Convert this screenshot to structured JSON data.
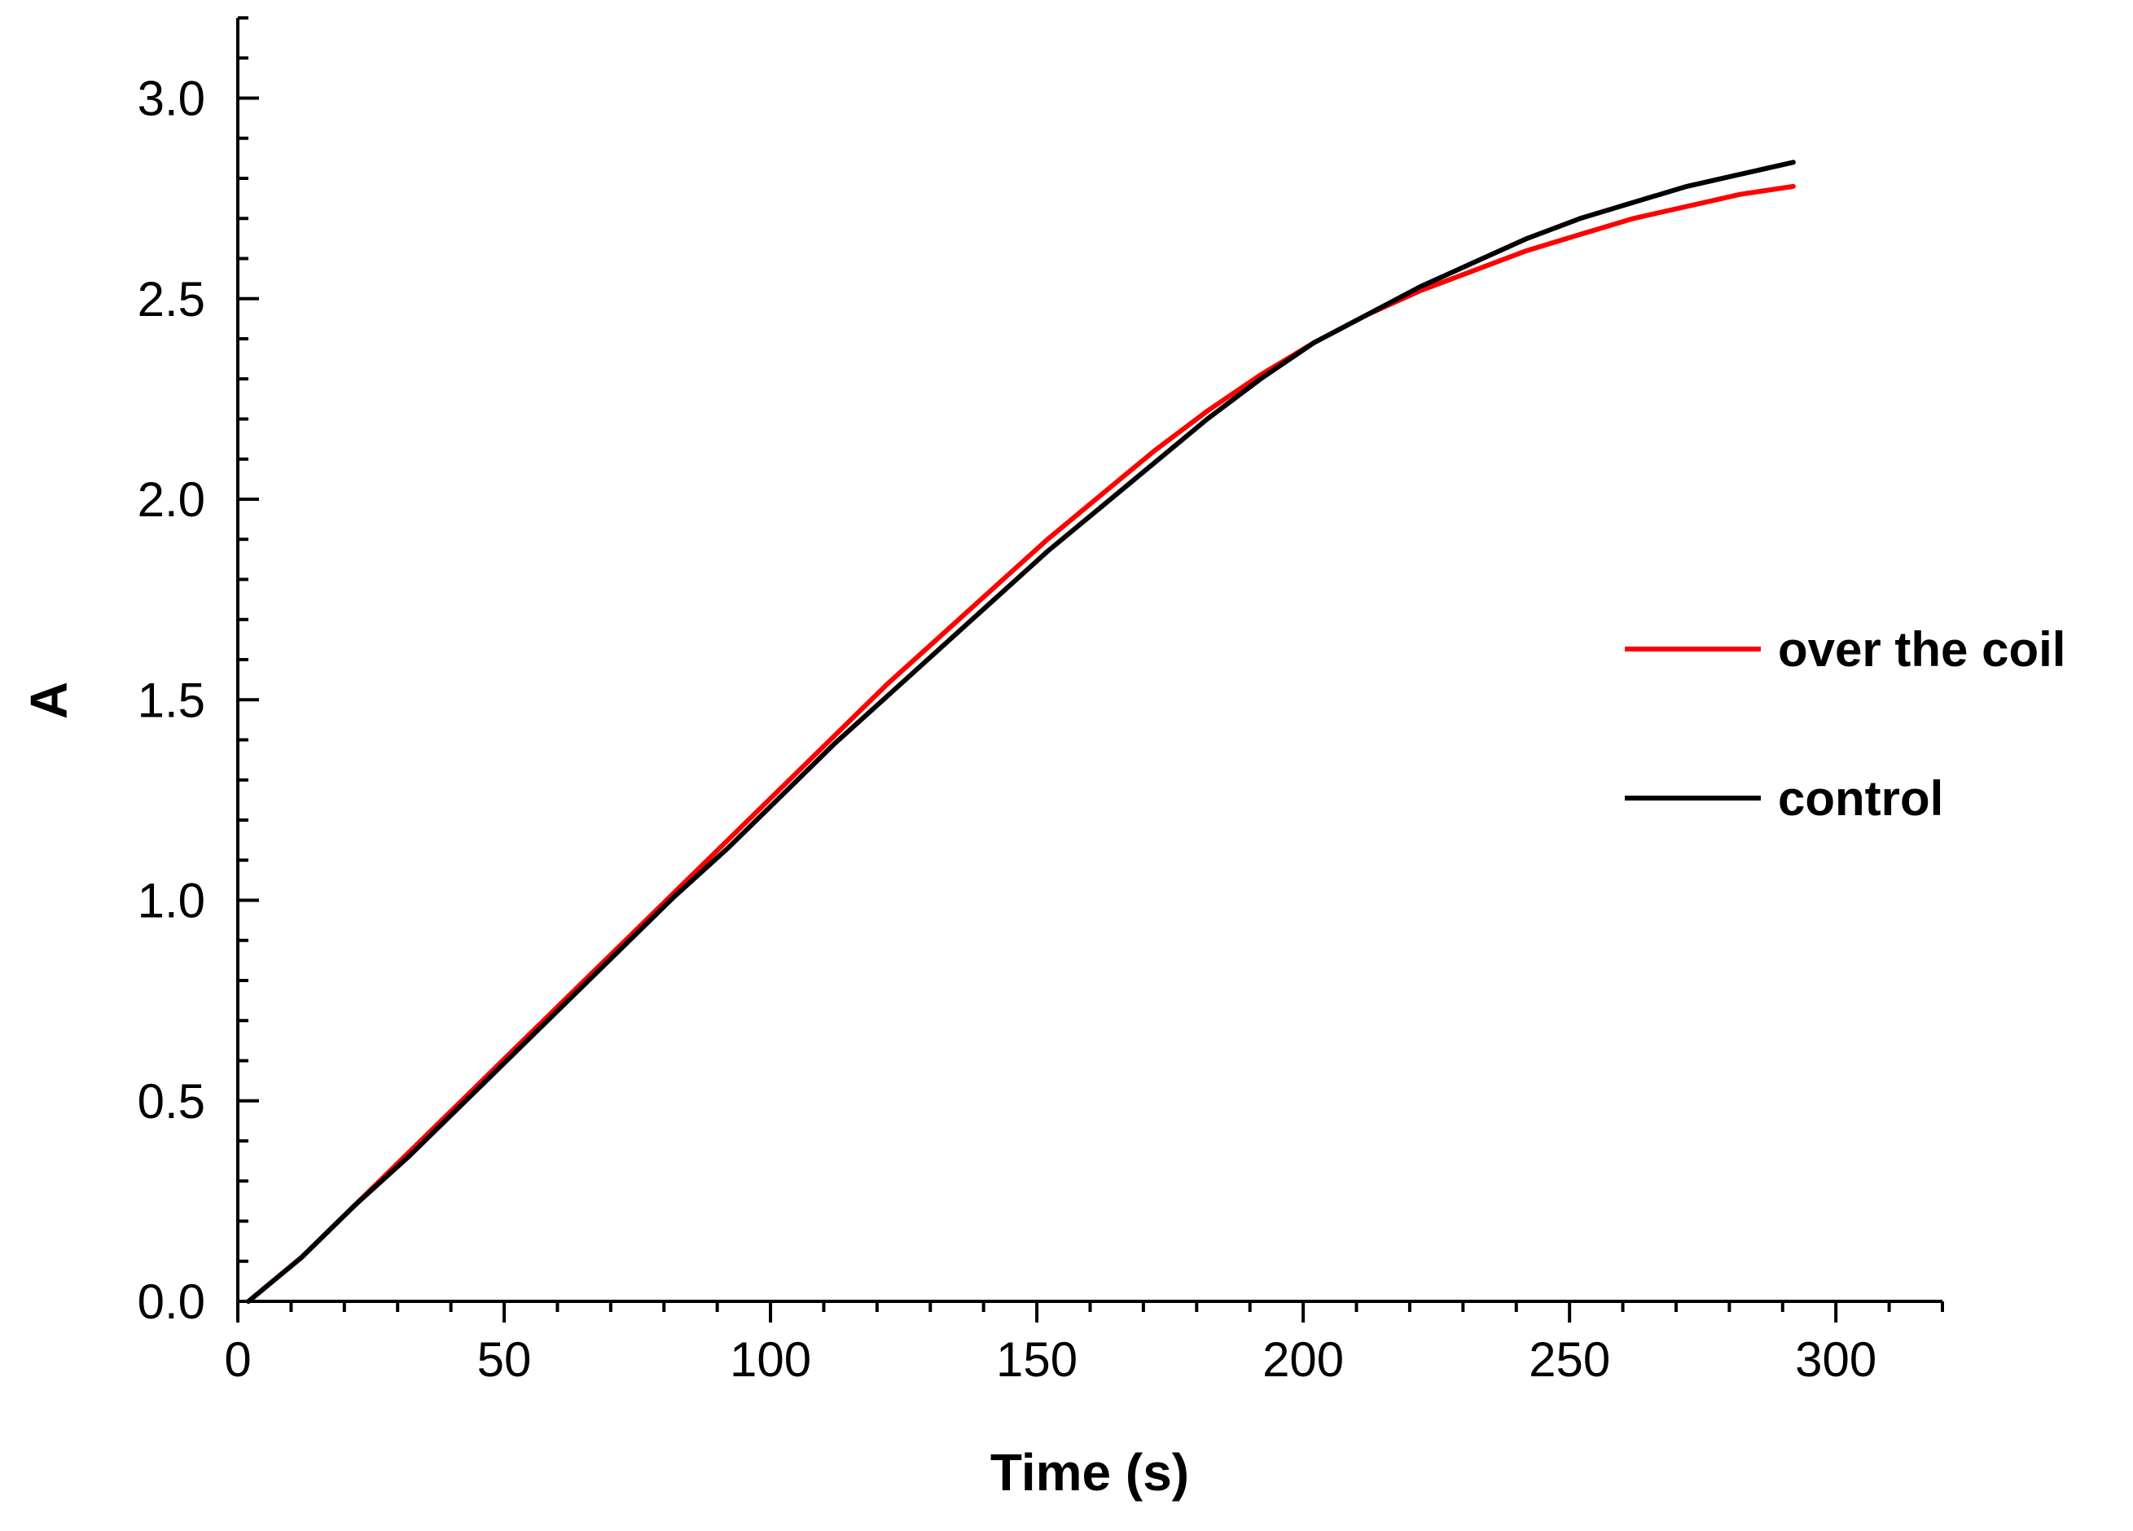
{
  "chart_data": {
    "type": "line",
    "title": "",
    "xlabel": "Time (s)",
    "ylabel": "A",
    "xlim": [
      0,
      320
    ],
    "ylim": [
      0,
      3.2
    ],
    "xticks": [
      0,
      50,
      100,
      150,
      200,
      250,
      300
    ],
    "xtick_labels": [
      "0",
      "50",
      "100",
      "150",
      "200",
      "250",
      "300"
    ],
    "x_minor_step": 10,
    "yticks": [
      0.0,
      0.5,
      1.0,
      1.5,
      2.0,
      2.5,
      3.0
    ],
    "ytick_labels": [
      "0.0",
      "0.5",
      "1.0",
      "1.5",
      "2.0",
      "2.5",
      "3.0"
    ],
    "y_minor_step": 0.1,
    "grid": false,
    "legend_position": "right",
    "x": [
      2,
      12,
      22,
      32,
      42,
      52,
      62,
      72,
      82,
      92,
      102,
      112,
      122,
      132,
      142,
      152,
      162,
      172,
      182,
      192,
      202,
      212,
      222,
      232,
      242,
      252,
      262,
      272,
      282,
      292
    ],
    "series": [
      {
        "name": "over the coil",
        "color": "#ff0000",
        "values": [
          0.0,
          0.11,
          0.24,
          0.37,
          0.5,
          0.63,
          0.76,
          0.89,
          1.02,
          1.15,
          1.28,
          1.41,
          1.54,
          1.66,
          1.78,
          1.9,
          2.01,
          2.12,
          2.22,
          2.31,
          2.39,
          2.46,
          2.52,
          2.57,
          2.62,
          2.66,
          2.7,
          2.73,
          2.76,
          2.78
        ]
      },
      {
        "name": "control",
        "color": "#000000",
        "values": [
          0.0,
          0.11,
          0.24,
          0.36,
          0.49,
          0.62,
          0.75,
          0.88,
          1.01,
          1.13,
          1.26,
          1.39,
          1.51,
          1.63,
          1.75,
          1.87,
          1.98,
          2.09,
          2.2,
          2.3,
          2.39,
          2.46,
          2.53,
          2.59,
          2.65,
          2.7,
          2.74,
          2.78,
          2.81,
          2.84
        ]
      }
    ]
  }
}
